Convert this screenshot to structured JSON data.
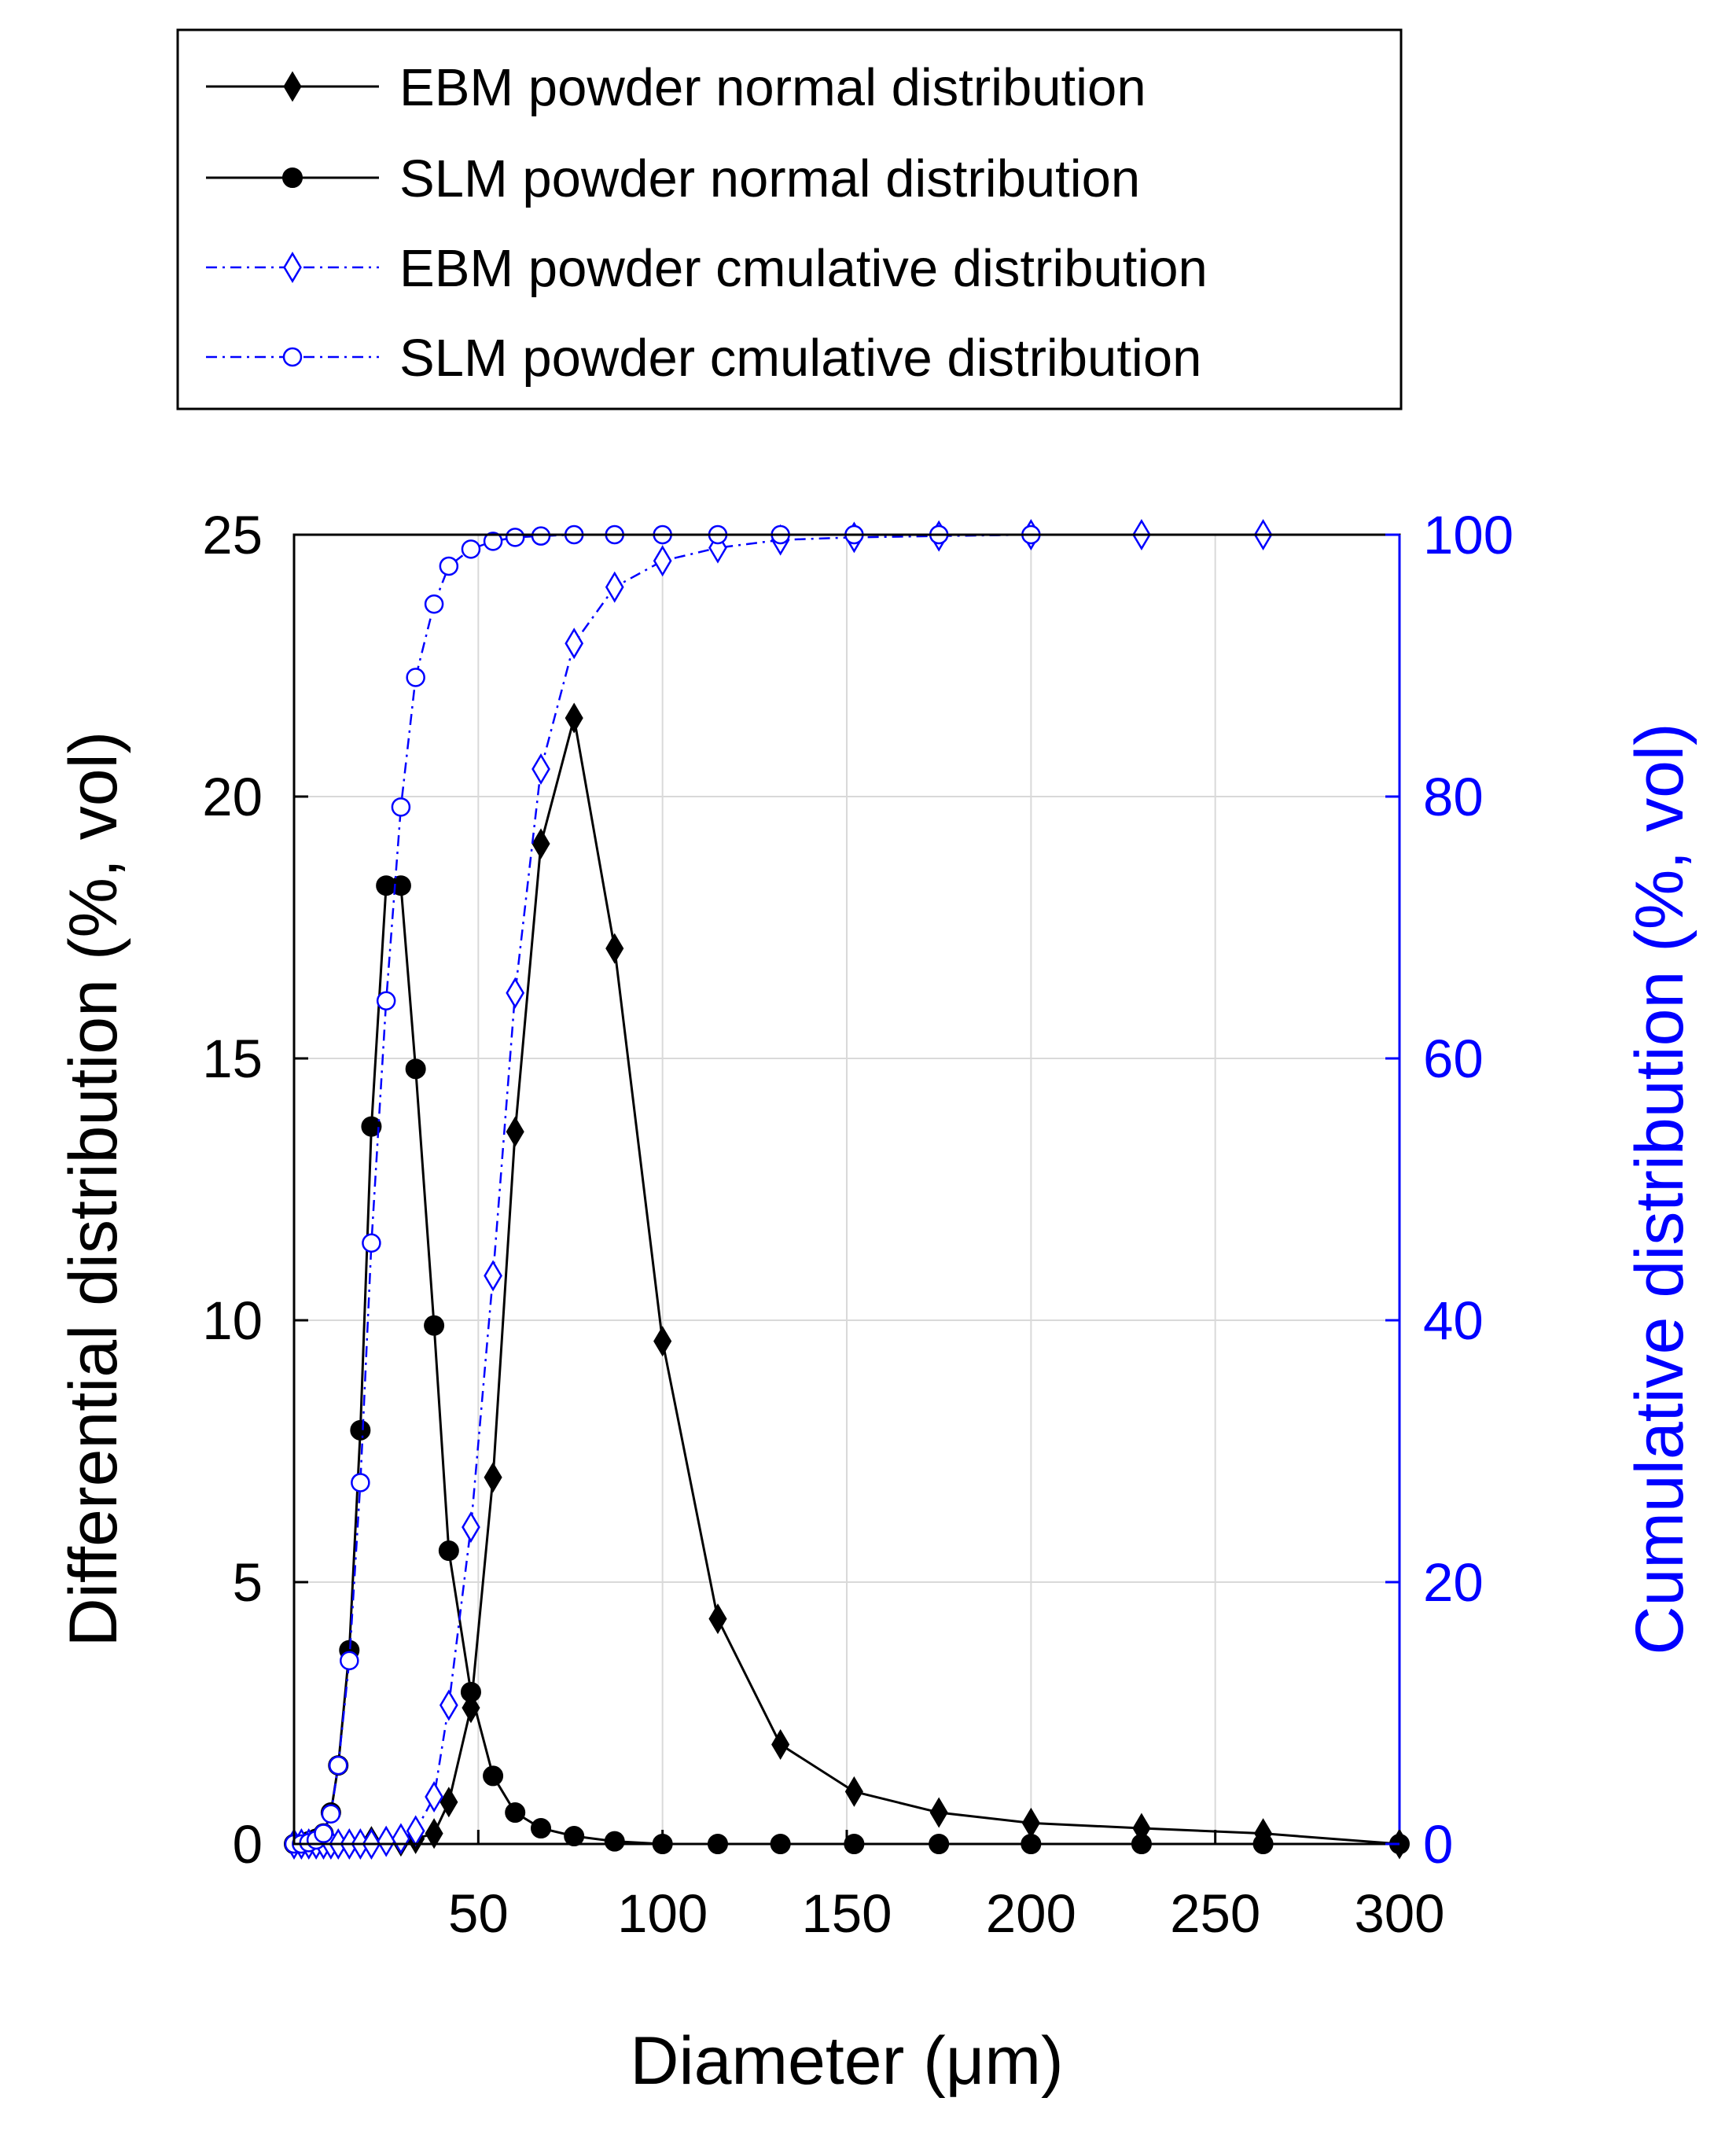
{
  "chart_data": {
    "type": "line",
    "title": "",
    "xlabel": "Diameter (μm)",
    "ylabel_left": "Differential distribution (%, vol)",
    "ylabel_right": "Cumulative distribution (%, vol)",
    "xlim": [
      0,
      300
    ],
    "ylim_left": [
      0,
      25
    ],
    "ylim_right": [
      0,
      100
    ],
    "xticks": [
      "50",
      "100",
      "150",
      "200",
      "250",
      "300"
    ],
    "yticks_left": [
      "0",
      "5",
      "10",
      "15",
      "20",
      "25"
    ],
    "yticks_right": [
      "0",
      "20",
      "40",
      "60",
      "80",
      "100"
    ],
    "grid": true,
    "legend_position": "top",
    "colors": {
      "normal": "#000000",
      "cumulative": "#0000ff"
    },
    "series": [
      {
        "name": "EBM powder normal distribution",
        "axis": "left",
        "marker": "diamond-filled",
        "style": "solid",
        "x": [
          0,
          2,
          4,
          6,
          8,
          10,
          12,
          15,
          18,
          21,
          25,
          29,
          33,
          38,
          42,
          48,
          54,
          60,
          67,
          76,
          87,
          100,
          115,
          132,
          152,
          175,
          200,
          230,
          263,
          300
        ],
        "y": [
          0,
          0,
          0,
          0,
          0,
          0,
          0,
          0,
          0,
          0.05,
          0.05,
          0.05,
          0.1,
          0.2,
          0.8,
          2.6,
          7.0,
          13.6,
          19.1,
          21.5,
          17.1,
          9.6,
          4.3,
          1.9,
          1.0,
          0.6,
          0.4,
          0.3,
          0.2,
          0
        ]
      },
      {
        "name": "SLM powder normal distribution",
        "axis": "left",
        "marker": "circle-filled",
        "style": "solid",
        "x": [
          0,
          2,
          4,
          6,
          8,
          10,
          12,
          15,
          18,
          21,
          25,
          29,
          33,
          38,
          42,
          48,
          54,
          60,
          67,
          76,
          87,
          100,
          115,
          132,
          152,
          175,
          200,
          230,
          263,
          300
        ],
        "y": [
          0,
          0,
          0.05,
          0.1,
          0.2,
          0.6,
          1.5,
          3.7,
          7.9,
          13.7,
          18.3,
          18.3,
          14.8,
          9.9,
          5.6,
          2.9,
          1.3,
          0.6,
          0.3,
          0.15,
          0.05,
          0,
          0,
          0,
          0,
          0,
          0,
          0,
          0,
          0
        ]
      },
      {
        "name": "EBM powder cmulative distribution",
        "axis": "right",
        "marker": "diamond-open",
        "style": "dashdot",
        "x": [
          0,
          2,
          4,
          6,
          8,
          10,
          12,
          15,
          18,
          21,
          25,
          29,
          33,
          38,
          42,
          48,
          54,
          60,
          67,
          76,
          87,
          100,
          115,
          132,
          152,
          175,
          200,
          230,
          263
        ],
        "y": [
          0,
          0,
          0,
          0,
          0,
          0,
          0,
          0,
          0,
          0,
          0.2,
          0.4,
          1.0,
          3.6,
          10.6,
          24.2,
          43.4,
          65.0,
          82.1,
          91.7,
          96.0,
          98.0,
          99.0,
          99.6,
          99.8,
          99.9,
          100,
          100,
          100
        ]
      },
      {
        "name": "SLM powder cmulative distribution",
        "axis": "right",
        "marker": "circle-open",
        "style": "dashdot",
        "x": [
          0,
          2,
          4,
          6,
          8,
          10,
          12,
          15,
          18,
          21,
          25,
          29,
          33,
          38,
          42,
          48,
          54,
          60,
          67,
          76,
          87,
          100,
          115,
          132,
          152,
          175,
          200
        ],
        "y": [
          0,
          0,
          0.1,
          0.3,
          0.8,
          2.3,
          6.0,
          14.0,
          27.6,
          45.9,
          64.4,
          79.2,
          89.1,
          94.7,
          97.6,
          98.9,
          99.5,
          99.8,
          99.9,
          100,
          100,
          100,
          100,
          100,
          100,
          100,
          100
        ]
      }
    ]
  }
}
